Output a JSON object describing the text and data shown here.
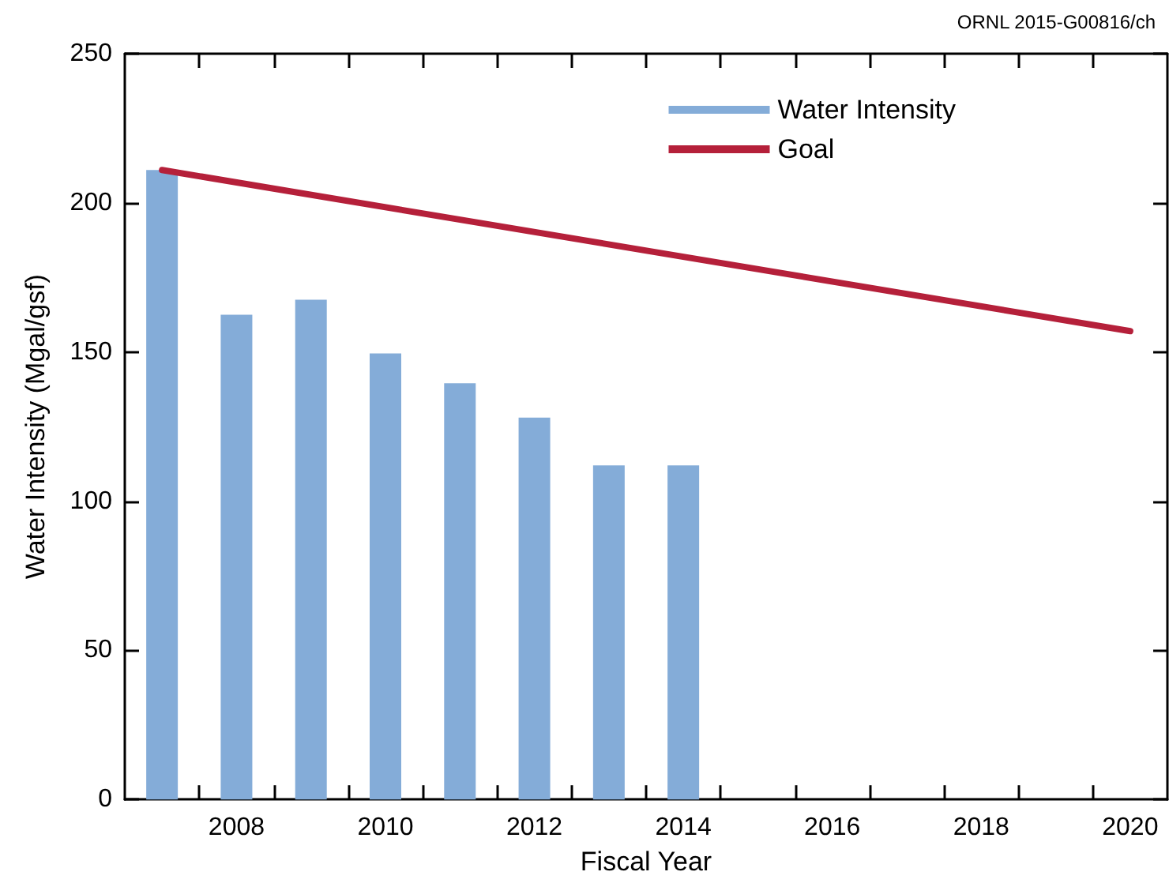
{
  "chart_data": {
    "type": "bar",
    "xlabel": "Fiscal Year",
    "ylabel": "Water Intensity (Mgal/gsf)",
    "annotations": [
      "ORNL 2015-G00816/ch"
    ],
    "xlim": [
      2006.5,
      2020.5
    ],
    "xticks": [
      {
        "value": 2007.5,
        "label": null
      },
      2008,
      {
        "value": 2008.5,
        "label": null
      },
      {
        "value": 2009.5,
        "label": null
      },
      2010,
      {
        "value": 2010.5,
        "label": null
      },
      {
        "value": 2011.5,
        "label": null
      },
      2012,
      {
        "value": 2012.5,
        "label": null
      },
      {
        "value": 2013.5,
        "label": null
      },
      2014,
      {
        "value": 2014.5,
        "label": null
      },
      {
        "value": 2015.5,
        "label": null
      },
      2016,
      {
        "value": 2016.5,
        "label": null
      },
      {
        "value": 2017.5,
        "label": null
      },
      2018,
      {
        "value": 2018.5,
        "label": null
      },
      {
        "value": 2019.5,
        "label": null
      },
      2020
    ],
    "ylim": [
      0,
      250
    ],
    "yticks": [
      0,
      50,
      100,
      150,
      200,
      250
    ],
    "grid": false,
    "legend": "top right",
    "series": [
      {
        "name": "Water Intensity",
        "color": "#84acd8",
        "x": [
          2007,
          2008,
          2009,
          2010,
          2011,
          2012,
          2013,
          2014
        ],
        "values": [
          211,
          162.5,
          167.5,
          149.5,
          139.5,
          128,
          112,
          112
        ]
      },
      {
        "name": "Goal",
        "type": "line",
        "color": "#b5203a",
        "marker": "none",
        "line_style": "solid",
        "x": [
          2007,
          2020
        ],
        "values": [
          211,
          157
        ]
      }
    ]
  }
}
